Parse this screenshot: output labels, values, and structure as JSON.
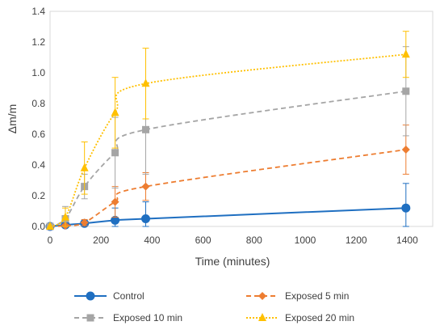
{
  "chart_data": {
    "type": "line",
    "title": "",
    "xlabel": "Time (minutes)",
    "ylabel": "Δm/m",
    "xlim": [
      0,
      1500
    ],
    "ylim": [
      0,
      1.4
    ],
    "x_ticks": [
      0,
      200,
      400,
      600,
      800,
      1000,
      1200,
      1400
    ],
    "y_ticks": [
      0.0,
      0.2,
      0.4,
      0.6,
      0.8,
      1.0,
      1.2,
      1.4
    ],
    "y_tick_labels": [
      "0.0",
      "0.2",
      "0.4",
      "0.6",
      "0.8",
      "1.0",
      "1.2",
      "1.4"
    ],
    "x_tick_labels": [
      "0",
      "200",
      "400",
      "600",
      "800",
      "1000",
      "1200",
      "1400"
    ],
    "grid": false,
    "legend_position": "bottom",
    "series": [
      {
        "name": "Control",
        "color": "#1F6FC1",
        "marker": "circle",
        "line_style": "solid",
        "points": [
          {
            "x": 0,
            "y": 0.0,
            "err": 0.0
          },
          {
            "x": 60,
            "y": 0.01,
            "err": 0.01
          },
          {
            "x": 135,
            "y": 0.02,
            "err": 0.01
          },
          {
            "x": 255,
            "y": 0.04,
            "err": 0.08
          },
          {
            "x": 375,
            "y": 0.05,
            "err": 0.11
          },
          {
            "x": 1395,
            "y": 0.12,
            "err": 0.16
          }
        ]
      },
      {
        "name": "Exposed  5 min",
        "color": "#ED7D31",
        "marker": "diamond",
        "line_style": "dashed",
        "points": [
          {
            "x": 0,
            "y": 0.0,
            "err": 0.0
          },
          {
            "x": 60,
            "y": 0.005,
            "err": 0.01
          },
          {
            "x": 135,
            "y": 0.025,
            "err": 0.02
          },
          {
            "x": 255,
            "y": 0.16,
            "err": 0.1
          },
          {
            "x": 375,
            "y": 0.26,
            "err": 0.09
          },
          {
            "x": 1395,
            "y": 0.5,
            "err": 0.16
          }
        ]
      },
      {
        "name": "Exposed 10 min",
        "color": "#A5A5A5",
        "marker": "square",
        "line_style": "dashed",
        "points": [
          {
            "x": 0,
            "y": 0.0,
            "err": 0.0
          },
          {
            "x": 60,
            "y": 0.05,
            "err": 0.08
          },
          {
            "x": 135,
            "y": 0.26,
            "err": 0.08
          },
          {
            "x": 255,
            "y": 0.48,
            "err": 0.23
          },
          {
            "x": 375,
            "y": 0.63,
            "err": 0.29
          },
          {
            "x": 1395,
            "y": 0.88,
            "err": 0.29
          }
        ]
      },
      {
        "name": "Exposed  20 min",
        "color": "#FFC000",
        "marker": "triangle",
        "line_style": "dotted",
        "points": [
          {
            "x": 0,
            "y": 0.0,
            "err": 0.0
          },
          {
            "x": 60,
            "y": 0.06,
            "err": 0.06
          },
          {
            "x": 135,
            "y": 0.38,
            "err": 0.17
          },
          {
            "x": 255,
            "y": 0.74,
            "err": 0.23
          },
          {
            "x": 375,
            "y": 0.93,
            "err": 0.23
          },
          {
            "x": 1395,
            "y": 1.12,
            "err": 0.15
          }
        ]
      }
    ]
  }
}
